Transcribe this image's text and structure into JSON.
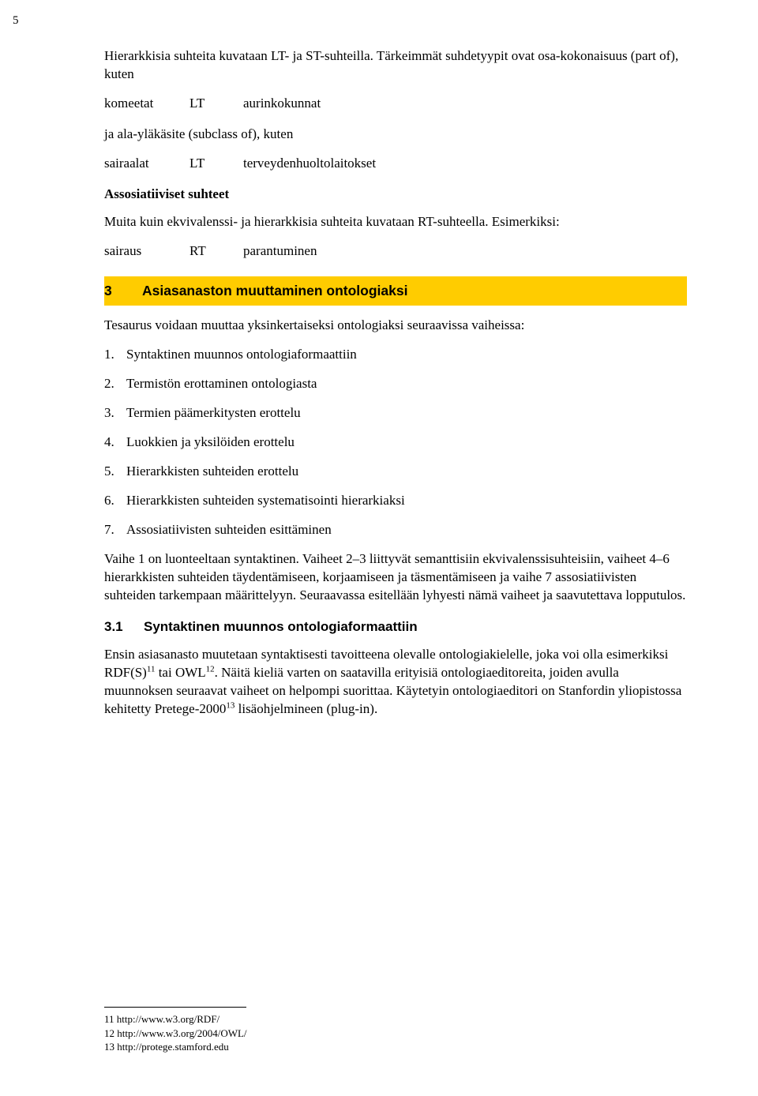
{
  "page": {
    "number": "5"
  },
  "intro": "Hierarkkisia suhteita kuvataan LT- ja ST-suhteilla. Tärkeimmät suhdetyypit ovat osa-kokonaisuus (part of), kuten",
  "rel1": {
    "a": "komeetat",
    "b": "LT",
    "c": "aurinkokunnat"
  },
  "intro2": "ja ala-yläkäsite (subclass of), kuten",
  "rel2": {
    "a": "sairaalat",
    "b": "LT",
    "c": "terveydenhuoltolaitokset"
  },
  "assoc_heading": "Assosiatiiviset suhteet",
  "assoc_para": "Muita kuin ekvivalenssi- ja hierarkkisia suhteita kuvataan RT-suhteella. Esimerkiksi:",
  "rel3": {
    "a": "sairaus",
    "b": "RT",
    "c": "parantuminen"
  },
  "sec3": {
    "num": "3",
    "title": "Asiasanaston muuttaminen ontologiaksi"
  },
  "sec3_intro": "Tesaurus voidaan muuttaa yksinkertaiseksi ontologiaksi seuraavissa vaiheissa:",
  "steps": [
    "Syntaktinen muunnos ontologiaformaattiin",
    "Termistön erottaminen ontologiasta",
    "Termien päämerkitysten erottelu",
    "Luokkien ja yksilöiden erottelu",
    "Hierarkkisten suhteiden erottelu",
    "Hierarkkisten suhteiden systematisointi hierarkiaksi",
    "Assosiatiivisten suhteiden esittäminen"
  ],
  "sec3_para": "Vaihe 1 on luonteeltaan syntaktinen. Vaiheet 2–3 liittyvät semanttisiin ekvivalenssisuhteisiin, vaiheet 4–6 hierarkkisten suhteiden täydentämiseen, korjaamiseen ja täsmentämiseen ja vaihe 7 assosiatiivisten suhteiden tarkempaan määrittelyyn. Seuraavassa esitellään lyhyesti nämä vaiheet ja saavutettava lopputulos.",
  "sec31": {
    "num": "3.1",
    "title": "Syntaktinen muunnos ontologiaformaattiin"
  },
  "sec31_para_a": "Ensin asiasanasto muutetaan syntaktisesti tavoitteena olevalle ontologiakielelle, joka voi olla esimerkiksi RDF(S)",
  "sec31_sup1": "11",
  "sec31_para_b": " tai OWL",
  "sec31_sup2": "12",
  "sec31_para_c": ". Näitä kieliä varten on saatavilla erityisiä ontologiaeditoreita, joiden avulla muunnoksen seuraavat vaiheet on helpompi suorittaa. Käytetyin ontologiaeditori on Stanfordin yliopistossa kehitetty Pretege-2000",
  "sec31_sup3": "13",
  "sec31_para_d": " lisäohjelmineen (plug-in).",
  "footnotes": [
    {
      "n": "11",
      "t": "http://www.w3.org/RDF/"
    },
    {
      "n": "12",
      "t": "http://www.w3.org/2004/OWL/"
    },
    {
      "n": "13",
      "t": "http://protege.stamford.edu"
    }
  ]
}
